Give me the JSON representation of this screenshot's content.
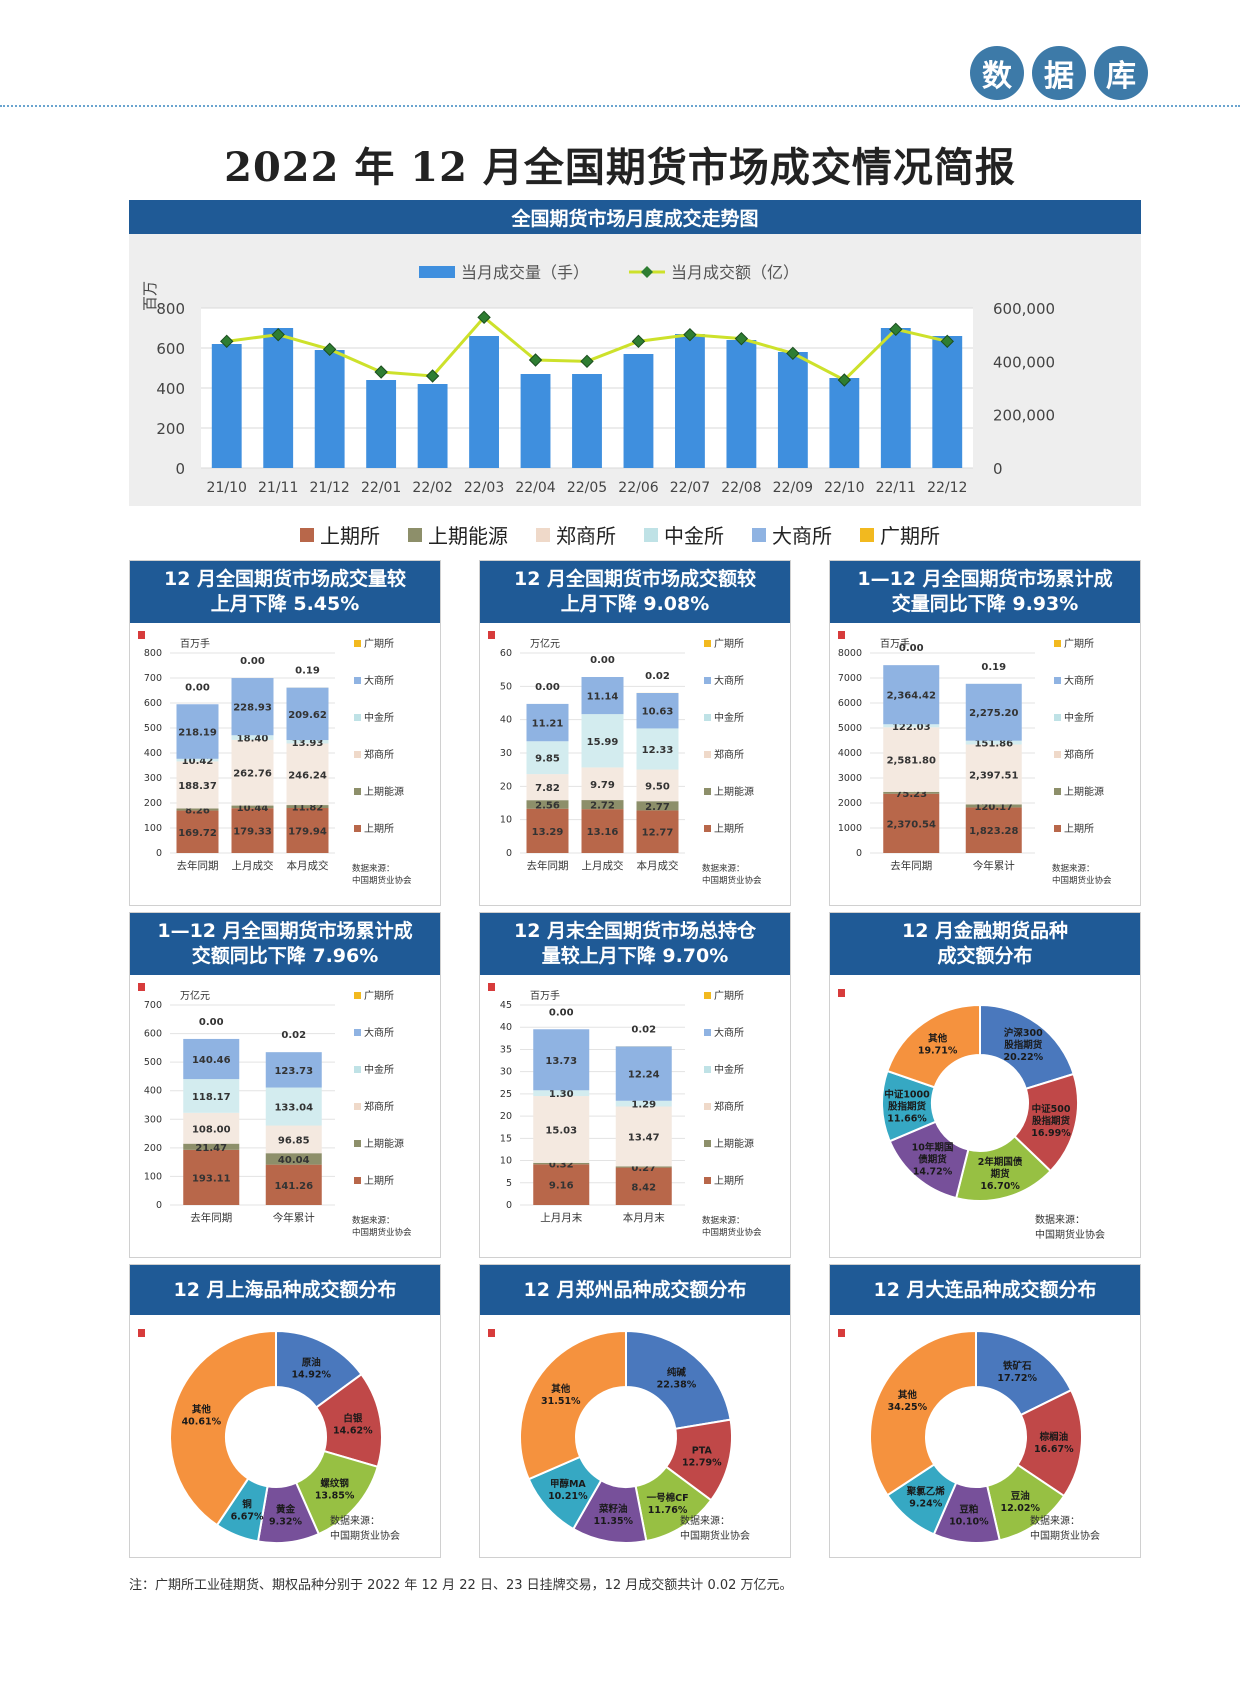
{
  "header": {
    "badges": [
      "数",
      "据",
      "库"
    ],
    "title": "2022 年 12 月全国期货市场成交情况简报"
  },
  "colors": {
    "shfe": "#b8674a",
    "ine": "#8d8f6a",
    "czce": "#f4e9e0",
    "cffex": "#d3ecef",
    "dce": "#8fb3e2",
    "gfex": "#f2b91f",
    "bar_blue": "#3f8fde",
    "line": "#cde12b",
    "header_blue": "#1f5a96"
  },
  "legend": [
    "上期所",
    "上期能源",
    "郑商所",
    "中金所",
    "大商所",
    "广期所"
  ],
  "trend": {
    "title": "全国期货市场月度成交走势图",
    "left_unit": "百万",
    "bar_label": "当月成交量（手）",
    "line_label": "当月成交额（亿）",
    "left_ticks": [
      "800",
      "600",
      "400",
      "200",
      "0"
    ],
    "right_ticks": [
      "600,000",
      "400,000",
      "200,000",
      "0"
    ]
  },
  "panels": {
    "p1": {
      "title1": "12 月全国期货市场成交量较",
      "title2": "上月下降 5.45%",
      "unit": "百万手",
      "source1": "数据来源：",
      "source2": "中国期货业协会"
    },
    "p2": {
      "title1": "12 月全国期货市场成交额较",
      "title2": "上月下降 9.08%",
      "unit": "万亿元",
      "source1": "数据来源：",
      "source2": "中国期货业协会"
    },
    "p3": {
      "title1": "1—12 月全国期货市场累计成",
      "title2": "交量同比下降 9.93%",
      "unit": "百万手",
      "source1": "数据来源：",
      "source2": "中国期货业协会"
    },
    "p4": {
      "title1": "1—12 月全国期货市场累计成",
      "title2": "交额同比下降 7.96%",
      "unit": "万亿元",
      "source1": "数据来源：",
      "source2": "中国期货业协会"
    },
    "p5": {
      "title1": "12 月末全国期货市场总持仓",
      "title2": "量较上月下降 9.70%",
      "unit": "百万手",
      "source1": "数据来源：",
      "source2": "中国期货业协会"
    },
    "p6": {
      "title1": "12 月金融期货品种",
      "title2": "成交额分布",
      "source1": "数据来源：",
      "source2": "中国期货业协会"
    },
    "p7": {
      "title1": "12 月上海品种成交额分布",
      "source1": "数据来源：",
      "source2": "中国期货业协会"
    },
    "p8": {
      "title1": "12 月郑州品种成交额分布",
      "source1": "数据来源：",
      "source2": "中国期货业协会"
    },
    "p9": {
      "title1": "12 月大连品种成交额分布",
      "source1": "数据来源：",
      "source2": "中国期货业协会"
    }
  },
  "footnote": "注：广期所工业硅期货、期权品种分别于 2022 年 12 月 22 日、23 日挂牌交易，12 月成交额共计 0.02 万亿元。",
  "chart_data": [
    {
      "id": "trend",
      "type": "bar+line",
      "categories": [
        "21/10",
        "21/11",
        "21/12",
        "22/01",
        "22/02",
        "22/03",
        "22/04",
        "22/05",
        "22/06",
        "22/07",
        "22/08",
        "22/09",
        "22/10",
        "22/11",
        "22/12"
      ],
      "series": [
        {
          "name": "当月成交量（手）",
          "axis": "left",
          "values": [
            620,
            700,
            590,
            440,
            420,
            660,
            470,
            470,
            570,
            670,
            640,
            580,
            450,
            700,
            660
          ]
        },
        {
          "name": "当月成交额（亿）",
          "axis": "right",
          "values": [
            475000,
            500000,
            445000,
            360000,
            345000,
            565000,
            405000,
            400000,
            475000,
            500000,
            485000,
            430000,
            330000,
            520000,
            475000
          ]
        }
      ],
      "ylim_left": [
        0,
        800
      ],
      "ylim_right": [
        0,
        600000
      ]
    },
    {
      "id": "p1",
      "type": "stacked-bar",
      "categories": [
        "去年同期",
        "上月成交",
        "本月成交"
      ],
      "ylim": [
        0,
        800
      ],
      "yticks": [
        "800",
        "700",
        "600",
        "500",
        "400",
        "300",
        "200",
        "100",
        "0"
      ],
      "series": [
        {
          "name": "上期所",
          "values": [
            169.72,
            179.33,
            179.94
          ],
          "labels": [
            "169.72",
            "179.33",
            "179.94"
          ]
        },
        {
          "name": "上期能源",
          "values": [
            8.26,
            10.44,
            11.82
          ],
          "labels": [
            "8.26",
            "10.44",
            "11.82"
          ]
        },
        {
          "name": "郑商所",
          "values": [
            188.37,
            262.76,
            246.24
          ],
          "labels": [
            "188.37",
            "262.76",
            "246.24"
          ]
        },
        {
          "name": "中金所",
          "values": [
            10.42,
            18.4,
            13.93
          ],
          "labels": [
            "10.42",
            "18.40",
            "13.93"
          ]
        },
        {
          "name": "大商所",
          "values": [
            218.19,
            228.93,
            209.62
          ],
          "labels": [
            "218.19",
            "228.93",
            "209.62"
          ]
        },
        {
          "name": "广期所",
          "values": [
            0,
            0,
            0.19
          ],
          "labels": [
            "0.00",
            "0.00",
            "0.19"
          ]
        }
      ]
    },
    {
      "id": "p2",
      "type": "stacked-bar",
      "categories": [
        "去年同期",
        "上月成交",
        "本月成交"
      ],
      "ylim": [
        0,
        60
      ],
      "yticks": [
        "60",
        "50",
        "40",
        "30",
        "20",
        "10",
        "0"
      ],
      "series": [
        {
          "name": "上期所",
          "values": [
            13.29,
            13.16,
            12.77
          ],
          "labels": [
            "13.29",
            "13.16",
            "12.77"
          ]
        },
        {
          "name": "上期能源",
          "values": [
            2.56,
            2.72,
            2.77
          ],
          "labels": [
            "2.56",
            "2.72",
            "2.77"
          ]
        },
        {
          "name": "郑商所",
          "values": [
            7.82,
            9.79,
            9.5
          ],
          "labels": [
            "7.82",
            "9.79",
            "9.50"
          ]
        },
        {
          "name": "中金所",
          "values": [
            9.85,
            15.99,
            12.33
          ],
          "labels": [
            "9.85",
            "15.99",
            "12.33"
          ]
        },
        {
          "name": "大商所",
          "values": [
            11.21,
            11.14,
            10.63
          ],
          "labels": [
            "11.21",
            "11.14",
            "10.63"
          ]
        },
        {
          "name": "广期所",
          "values": [
            0,
            0,
            0.02
          ],
          "labels": [
            "0.00",
            "0.00",
            "0.02"
          ]
        }
      ]
    },
    {
      "id": "p3",
      "type": "stacked-bar",
      "categories": [
        "去年同期",
        "今年累计"
      ],
      "ylim": [
        0,
        8000
      ],
      "yticks": [
        "8000",
        "7000",
        "6000",
        "5000",
        "4000",
        "3000",
        "2000",
        "1000",
        "0"
      ],
      "series": [
        {
          "name": "上期所",
          "values": [
            2370.54,
            1823.28
          ],
          "labels": [
            "2,370.54",
            "1,823.28"
          ]
        },
        {
          "name": "上期能源",
          "values": [
            75.23,
            120.17
          ],
          "labels": [
            "75.23",
            "120.17"
          ]
        },
        {
          "name": "郑商所",
          "values": [
            2581.8,
            2397.51
          ],
          "labels": [
            "2,581.80",
            "2,397.51"
          ]
        },
        {
          "name": "中金所",
          "values": [
            122.03,
            151.86
          ],
          "labels": [
            "122.03",
            "151.86"
          ]
        },
        {
          "name": "大商所",
          "values": [
            2364.42,
            2275.2
          ],
          "labels": [
            "2,364.42",
            "2,275.20"
          ]
        },
        {
          "name": "广期所",
          "values": [
            0,
            0.19
          ],
          "labels": [
            "0.00",
            "0.19"
          ]
        }
      ]
    },
    {
      "id": "p4",
      "type": "stacked-bar",
      "categories": [
        "去年同期",
        "今年累计"
      ],
      "ylim": [
        0,
        700
      ],
      "yticks": [
        "700",
        "600",
        "500",
        "400",
        "300",
        "200",
        "100",
        "0"
      ],
      "series": [
        {
          "name": "上期所",
          "values": [
            193.11,
            141.26
          ],
          "labels": [
            "193.11",
            "141.26"
          ]
        },
        {
          "name": "上期能源",
          "values": [
            21.47,
            40.04
          ],
          "labels": [
            "21.47",
            "40.04"
          ]
        },
        {
          "name": "郑商所",
          "values": [
            108.0,
            96.85
          ],
          "labels": [
            "108.00",
            "96.85"
          ]
        },
        {
          "name": "中金所",
          "values": [
            118.17,
            133.04
          ],
          "labels": [
            "118.17",
            "133.04"
          ]
        },
        {
          "name": "大商所",
          "values": [
            140.46,
            123.73
          ],
          "labels": [
            "140.46",
            "123.73"
          ]
        },
        {
          "name": "广期所",
          "values": [
            0,
            0.02
          ],
          "labels": [
            "0.00",
            "0.02"
          ]
        }
      ]
    },
    {
      "id": "p5",
      "type": "stacked-bar",
      "categories": [
        "上月月末",
        "本月月末"
      ],
      "ylim": [
        0,
        45
      ],
      "yticks": [
        "45",
        "40",
        "35",
        "30",
        "25",
        "20",
        "15",
        "10",
        "5",
        "0"
      ],
      "series": [
        {
          "name": "上期所",
          "values": [
            9.16,
            8.42
          ],
          "labels": [
            "9.16",
            "8.42"
          ]
        },
        {
          "name": "上期能源",
          "values": [
            0.32,
            0.27
          ],
          "labels": [
            "0.32",
            "0.27"
          ]
        },
        {
          "name": "郑商所",
          "values": [
            15.03,
            13.47
          ],
          "labels": [
            "15.03",
            "13.47"
          ]
        },
        {
          "name": "中金所",
          "values": [
            1.3,
            1.29
          ],
          "labels": [
            "1.30",
            "1.29"
          ]
        },
        {
          "name": "大商所",
          "values": [
            13.73,
            12.24
          ],
          "labels": [
            "13.73",
            "12.24"
          ]
        },
        {
          "name": "广期所",
          "values": [
            0,
            0.02
          ],
          "labels": [
            "0.00",
            "0.02"
          ]
        }
      ]
    },
    {
      "id": "p6",
      "type": "pie",
      "slices": [
        {
          "label": "沪深300\n股指期货",
          "value": 20.22,
          "pct": "20.22%",
          "color": "#4a78bd"
        },
        {
          "label": "中证500\n股指期货",
          "value": 16.99,
          "pct": "16.99%",
          "color": "#c04848"
        },
        {
          "label": "2年期国债\n期货",
          "value": 16.7,
          "pct": "16.70%",
          "color": "#97c043"
        },
        {
          "label": "10年期国\n债期货",
          "value": 14.72,
          "pct": "14.72%",
          "color": "#77509a"
        },
        {
          "label": "中证1000\n股指期货",
          "value": 11.66,
          "pct": "11.66%",
          "color": "#36a8c3"
        },
        {
          "label": "其他",
          "value": 19.71,
          "pct": "19.71%",
          "color": "#f5923e"
        }
      ]
    },
    {
      "id": "p7",
      "type": "pie",
      "slices": [
        {
          "label": "原油",
          "value": 14.92,
          "pct": "14.92%",
          "color": "#4a78bd"
        },
        {
          "label": "白银",
          "value": 14.62,
          "pct": "14.62%",
          "color": "#c04848"
        },
        {
          "label": "螺纹钢",
          "value": 13.85,
          "pct": "13.85%",
          "color": "#97c043"
        },
        {
          "label": "黄金",
          "value": 9.32,
          "pct": "9.32%",
          "color": "#77509a"
        },
        {
          "label": "铜",
          "value": 6.67,
          "pct": "6.67%",
          "color": "#36a8c3"
        },
        {
          "label": "其他",
          "value": 40.61,
          "pct": "40.61%",
          "color": "#f5923e"
        }
      ]
    },
    {
      "id": "p8",
      "type": "pie",
      "slices": [
        {
          "label": "纯碱",
          "value": 22.38,
          "pct": "22.38%",
          "color": "#4a78bd"
        },
        {
          "label": "PTA",
          "value": 12.79,
          "pct": "12.79%",
          "color": "#c04848"
        },
        {
          "label": "一号棉CF",
          "value": 11.76,
          "pct": "11.76%",
          "color": "#97c043"
        },
        {
          "label": "菜籽油",
          "value": 11.35,
          "pct": "11.35%",
          "color": "#77509a"
        },
        {
          "label": "甲醇MA",
          "value": 10.21,
          "pct": "10.21%",
          "color": "#36a8c3"
        },
        {
          "label": "其他",
          "value": 31.51,
          "pct": "31.51%",
          "color": "#f5923e"
        }
      ]
    },
    {
      "id": "p9",
      "type": "pie",
      "slices": [
        {
          "label": "铁矿石",
          "value": 17.72,
          "pct": "17.72%",
          "color": "#4a78bd"
        },
        {
          "label": "棕榈油",
          "value": 16.67,
          "pct": "16.67%",
          "color": "#c04848"
        },
        {
          "label": "豆油",
          "value": 12.02,
          "pct": "12.02%",
          "color": "#97c043"
        },
        {
          "label": "豆粕",
          "value": 10.1,
          "pct": "10.10%",
          "color": "#77509a"
        },
        {
          "label": "聚氯乙烯",
          "value": 9.24,
          "pct": "9.24%",
          "color": "#36a8c3"
        },
        {
          "label": "其他",
          "value": 34.25,
          "pct": "34.25%",
          "color": "#f5923e"
        }
      ]
    }
  ]
}
